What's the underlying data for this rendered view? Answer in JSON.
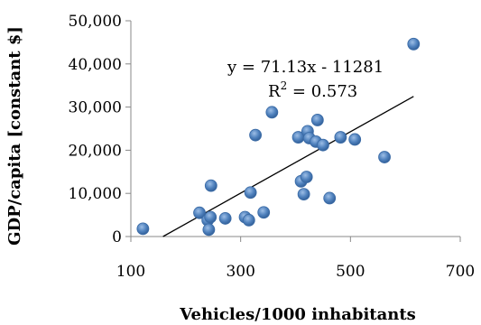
{
  "chart_data": {
    "type": "scatter",
    "xlabel": "Vehicles/1000 inhabitants",
    "ylabel": "GDP/capita [constant $]",
    "xlim": [
      100,
      700
    ],
    "ylim": [
      0,
      50000
    ],
    "x_ticks": [
      100,
      300,
      500,
      700
    ],
    "x_tick_labels": [
      "100",
      "300",
      "500",
      "700"
    ],
    "y_ticks": [
      0,
      10000,
      20000,
      30000,
      40000,
      50000
    ],
    "y_tick_labels": [
      "0",
      "10,000",
      "20,000",
      "30,000",
      "40,000",
      "50,000"
    ],
    "grid": false,
    "point_color": "#4F81BD",
    "trendline": {
      "type": "linear",
      "slope": 71.13,
      "intercept": -11281,
      "equation_label": "y = 71.13x - 11281",
      "r2_label_prefix": "R",
      "r2_label_exp": "2",
      "r2_label_value": " = 0.573"
    },
    "points": [
      {
        "x": 122,
        "y": 1800
      },
      {
        "x": 225,
        "y": 5500
      },
      {
        "x": 240,
        "y": 3800
      },
      {
        "x": 242,
        "y": 1600
      },
      {
        "x": 245,
        "y": 4500
      },
      {
        "x": 246,
        "y": 11800
      },
      {
        "x": 272,
        "y": 4200
      },
      {
        "x": 308,
        "y": 4500
      },
      {
        "x": 315,
        "y": 3800
      },
      {
        "x": 318,
        "y": 10200
      },
      {
        "x": 327,
        "y": 23500
      },
      {
        "x": 342,
        "y": 5600
      },
      {
        "x": 357,
        "y": 28800
      },
      {
        "x": 405,
        "y": 23000
      },
      {
        "x": 410,
        "y": 12800
      },
      {
        "x": 415,
        "y": 9800
      },
      {
        "x": 420,
        "y": 13800
      },
      {
        "x": 422,
        "y": 24400
      },
      {
        "x": 425,
        "y": 22800
      },
      {
        "x": 437,
        "y": 22000
      },
      {
        "x": 440,
        "y": 27000
      },
      {
        "x": 450,
        "y": 21200
      },
      {
        "x": 462,
        "y": 8900
      },
      {
        "x": 482,
        "y": 23000
      },
      {
        "x": 508,
        "y": 22500
      },
      {
        "x": 562,
        "y": 18400
      },
      {
        "x": 615,
        "y": 44600
      }
    ]
  }
}
